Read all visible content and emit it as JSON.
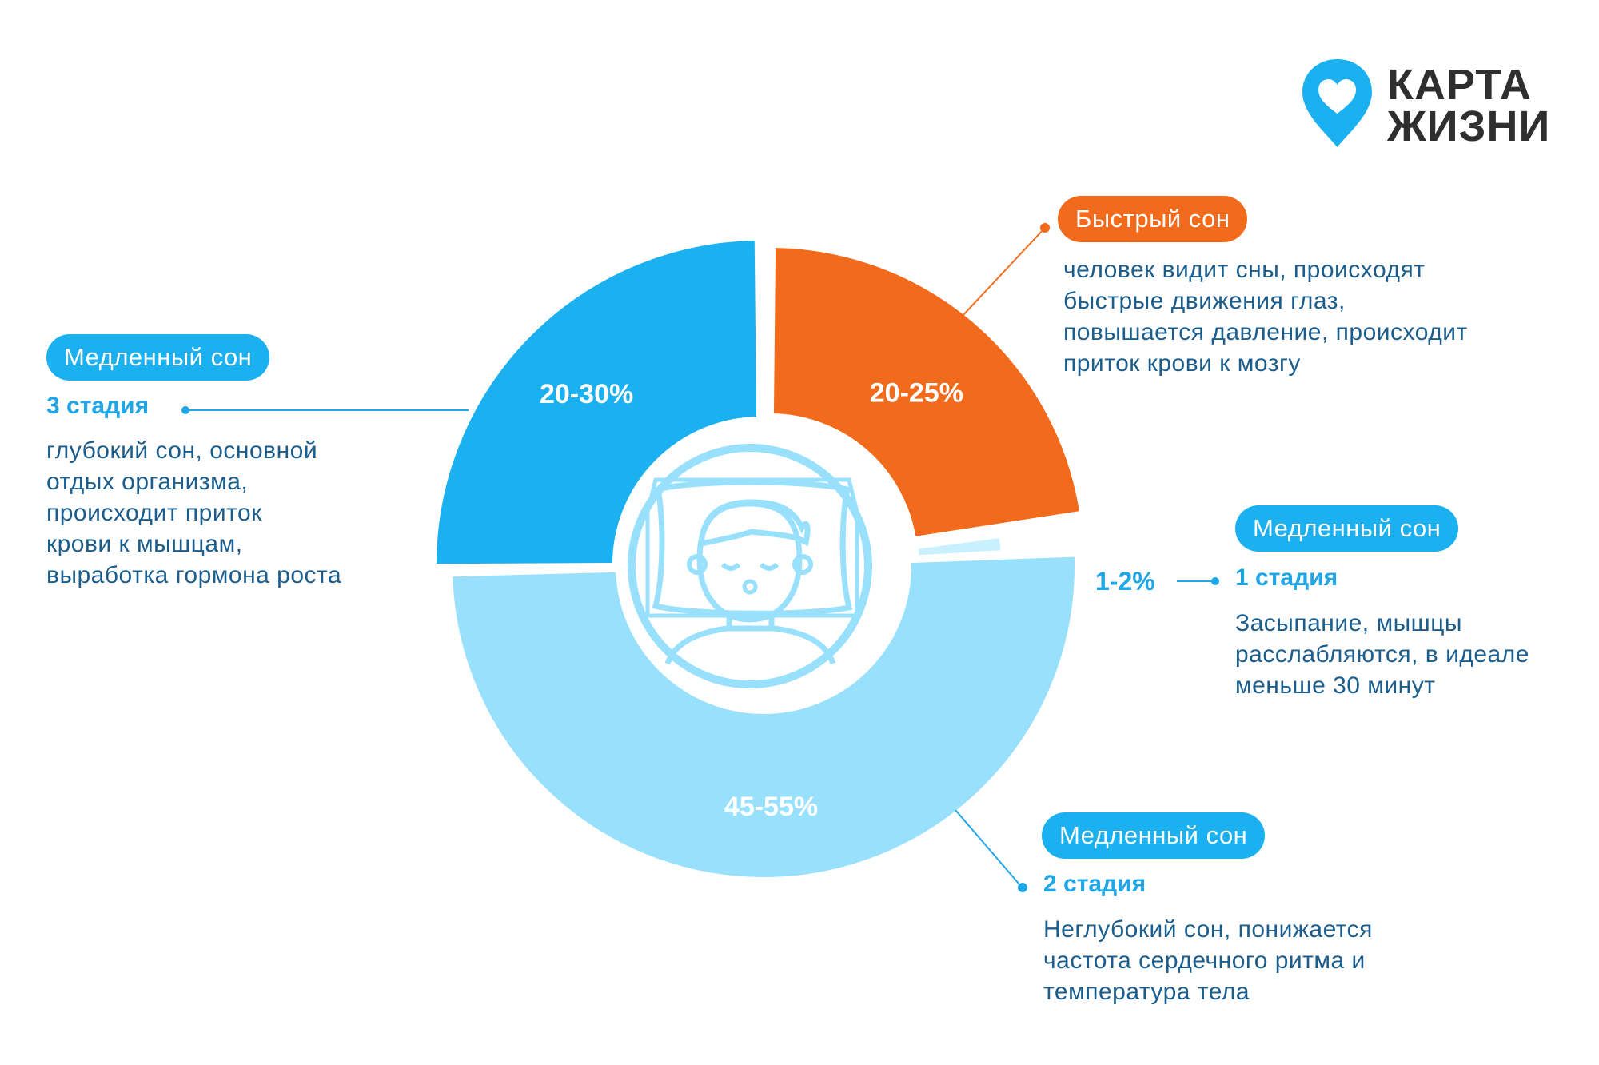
{
  "logo": {
    "text": "КАРТА\nЖИЗНИ",
    "color": "#1bb0ef"
  },
  "colors": {
    "deep_blue": "#1bb0ef",
    "orange": "#f26b1d",
    "light_blue": "#99e0fd",
    "pale_blue": "#c9f0fe",
    "text_dark_blue": "#1b5d8c",
    "stage_blue": "#1ea6e6"
  },
  "icon": "sleeping-person-icon",
  "chart_data": {
    "type": "pie",
    "style": "donut",
    "slices": [
      {
        "label": "20-25%",
        "value": 22.5,
        "color": "#f26b1d"
      },
      {
        "label": "1-2%",
        "value": 1.5,
        "color": "#c9f0fe"
      },
      {
        "label": "45-55%",
        "value": 50,
        "color": "#99e0fd"
      },
      {
        "label": "20-30%",
        "value": 25,
        "color": "#1bb0ef"
      }
    ]
  },
  "annotations": {
    "rem": {
      "pill": "Быстрый сон",
      "description": "человек видит сны, происходят\nбыстрые движения глаз,\nповышается давление, происходит\nприток крови к мозгу"
    },
    "stage3": {
      "pill": "Медленный сон",
      "stage": "3 стадия",
      "description": "глубокий сон, основной\nотдых организма,\nпроисходит приток\nкрови к мышцам,\nвыработка гормона роста"
    },
    "stage1": {
      "pill": "Медленный сон",
      "stage": "1 стадия",
      "percent": "1-2%",
      "description": "Засыпание, мышцы\nрасслабляются, в идеале\nменьше 30 минут"
    },
    "stage2": {
      "pill": "Медленный сон",
      "stage": "2 стадия",
      "description": "Неглубокий сон, понижается\nчастота сердечного ритма и\nтемпература тела"
    }
  }
}
